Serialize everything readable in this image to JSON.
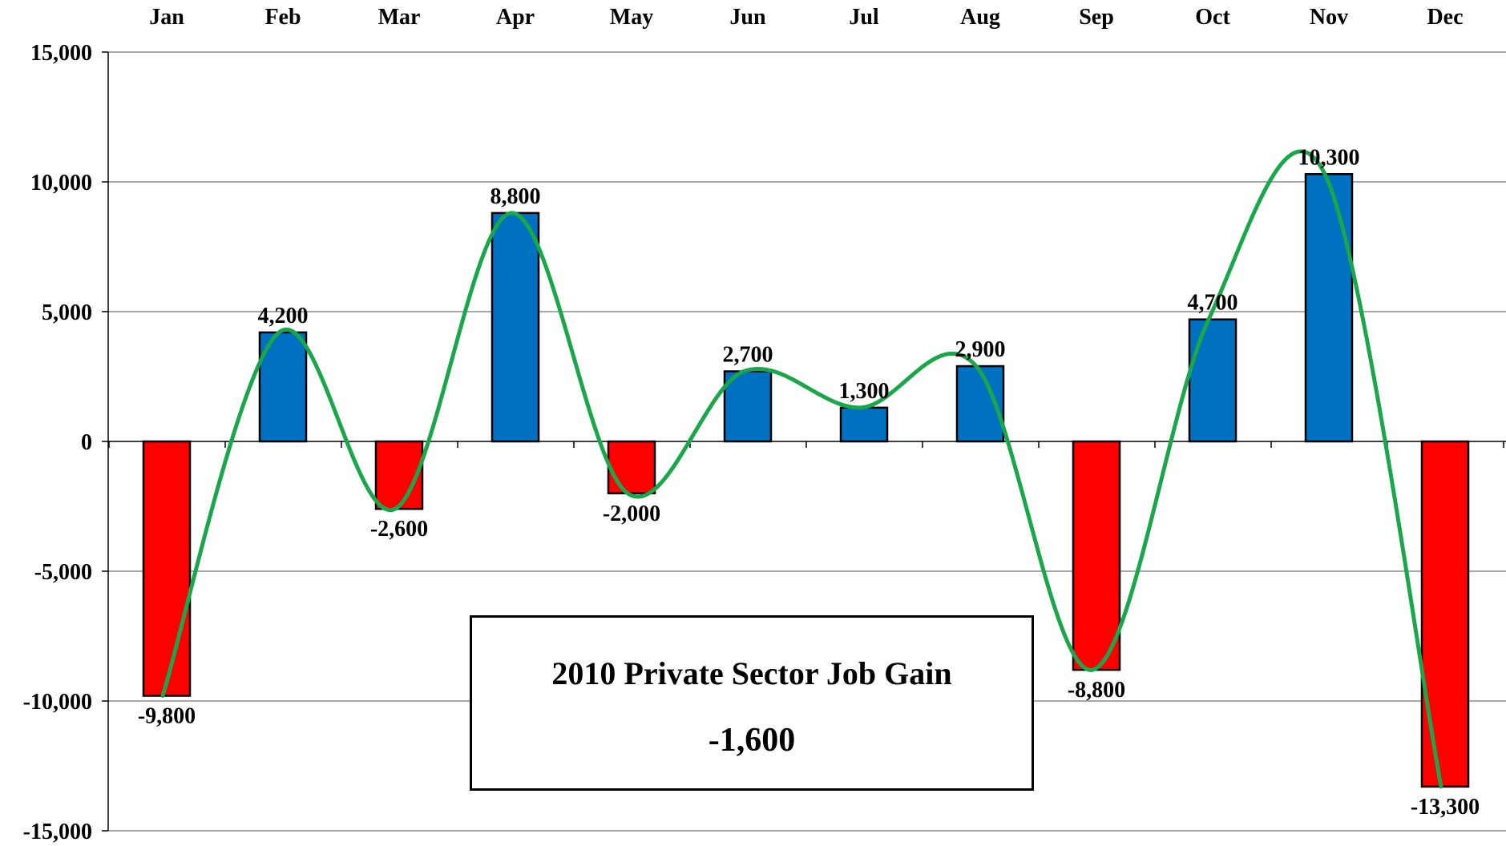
{
  "chart_data": {
    "type": "bar",
    "categories": [
      "Jan",
      "Feb",
      "Mar",
      "Apr",
      "May",
      "Jun",
      "Jul",
      "Aug",
      "Sep",
      "Oct",
      "Nov",
      "Dec"
    ],
    "series": [
      {
        "values": [
          -9800,
          4200,
          -2600,
          8800,
          -2000,
          2700,
          1300,
          2900,
          -8800,
          4700,
          10300,
          -13300
        ],
        "data_labels": [
          "-9,800",
          "4,200",
          "-2,600",
          "8,800",
          "-2,000",
          "2,700",
          "1,300",
          "2,900",
          "-8,800",
          "4,700",
          "10,300",
          "-13,300"
        ]
      }
    ],
    "trendline": {
      "type": "smoothed-line",
      "color": "#1aa64a"
    },
    "positive_color": "#0070c0",
    "negative_color": "#ff0000",
    "ylim": [
      -15000,
      15000
    ],
    "y_ticks": [
      15000,
      10000,
      5000,
      0,
      -5000,
      -10000,
      -15000
    ],
    "y_tick_labels": [
      "15,000",
      "10,000",
      "5,000",
      "0",
      "-5,000",
      "-10,000",
      "-15,000"
    ],
    "x_axis_position": "top",
    "grid": true,
    "title": "",
    "xlabel": "",
    "ylabel": "",
    "annotation": {
      "title": "2010 Private Sector Job Gain",
      "value": "-1,600"
    }
  }
}
